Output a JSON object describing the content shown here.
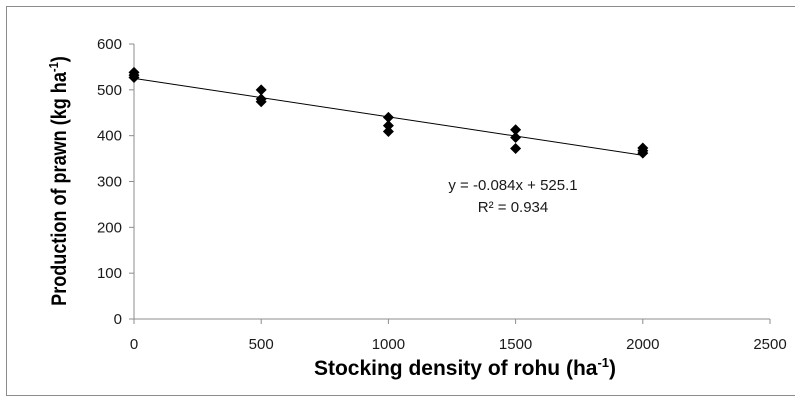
{
  "chart_data": {
    "type": "scatter",
    "title": "",
    "xlabel": {
      "text": "Stocking density of rohu (ha",
      "sup": "-1",
      "close": ")"
    },
    "ylabel": {
      "text": "Production of prawn (kg ha",
      "sup": "-1",
      "close": ")"
    },
    "xlim": [
      0,
      2500
    ],
    "ylim": [
      0,
      600
    ],
    "xticks": [
      0,
      500,
      1000,
      1500,
      2000,
      2500
    ],
    "yticks": [
      0,
      100,
      200,
      300,
      400,
      500,
      600
    ],
    "grid": false,
    "legend": "none",
    "marker": "diamond",
    "marker_color": "#000000",
    "series": [
      {
        "points": [
          {
            "x": 0,
            "y": 538
          },
          {
            "x": 0,
            "y": 532
          },
          {
            "x": 0,
            "y": 527
          },
          {
            "x": 500,
            "y": 500
          },
          {
            "x": 500,
            "y": 480
          },
          {
            "x": 500,
            "y": 474
          },
          {
            "x": 1000,
            "y": 440
          },
          {
            "x": 1000,
            "y": 422
          },
          {
            "x": 1000,
            "y": 409
          },
          {
            "x": 1500,
            "y": 413
          },
          {
            "x": 1500,
            "y": 396
          },
          {
            "x": 1500,
            "y": 372
          },
          {
            "x": 2000,
            "y": 373
          },
          {
            "x": 2000,
            "y": 367
          },
          {
            "x": 2000,
            "y": 362
          }
        ]
      }
    ],
    "trendline": {
      "slope": -0.084,
      "intercept": 525.1,
      "x_range": [
        0,
        2000
      ],
      "equation": "y = -0.084x + 525.1",
      "r2": "R² = 0.934"
    }
  }
}
